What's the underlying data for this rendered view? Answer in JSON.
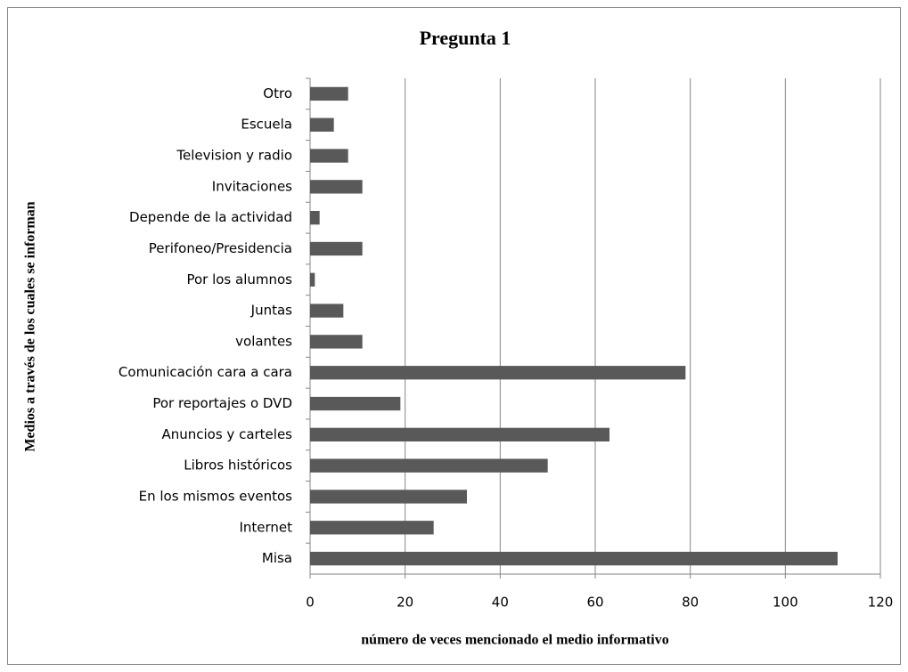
{
  "chart_data": {
    "type": "bar",
    "orientation": "horizontal",
    "title": "Pregunta 1",
    "x_label": "número de veces mencionado el medio informativo",
    "y_label": "Medios a través de los cuales se informan",
    "categories": [
      "Otro",
      "Escuela",
      "Television y radio",
      "Invitaciones",
      "Depende de la actividad",
      "Perifoneo/Presidencia",
      "Por los alumnos",
      "Juntas",
      "volantes",
      "Comunicación cara a cara",
      "Por reportajes o DVD",
      "Anuncios y carteles",
      "Libros históricos",
      "En los mismos eventos",
      "Internet",
      "Misa"
    ],
    "values": [
      8,
      5,
      8,
      11,
      2,
      11,
      1,
      7,
      11,
      79,
      19,
      63,
      50,
      33,
      26,
      111
    ],
    "color": "#595959",
    "xlim": [
      0,
      120
    ],
    "xticks": [
      0,
      20,
      40,
      60,
      80,
      100,
      120
    ],
    "grid": true
  }
}
